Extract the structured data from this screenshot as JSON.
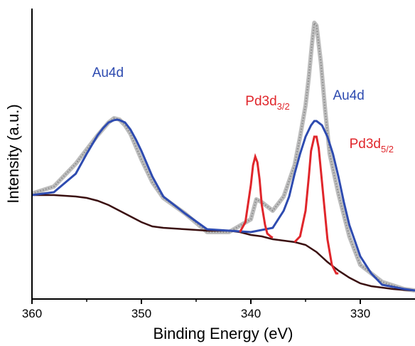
{
  "chart_data": {
    "type": "line",
    "xlabel": "Binding Energy (eV)",
    "ylabel": "Intensity (a.u.)",
    "xlim": [
      360,
      325
    ],
    "x_reversed": true,
    "y_ticks_shown": false,
    "grid": false,
    "xticks": [
      360,
      350,
      340,
      330
    ],
    "xtick_labels": [
      "360",
      "350",
      "340",
      "330"
    ],
    "colors": {
      "raw": "#bdbdbd",
      "raw_dots": "#8a8a8a",
      "au": "#2e4bb0",
      "pd": "#e0262b",
      "background": "#3a0f10"
    },
    "annotations": [
      {
        "name": "au4d-left",
        "text": "Au4d",
        "sub": "",
        "color": "#2e4bb0",
        "x": 354.5,
        "y": 0.78
      },
      {
        "name": "pd3d32",
        "text": "Pd3d",
        "sub": "3/2",
        "color": "#e0262b",
        "x": 340.5,
        "y": 0.68
      },
      {
        "name": "au4d-right",
        "text": "Au4d",
        "sub": "",
        "color": "#2e4bb0",
        "x": 332.5,
        "y": 0.7
      },
      {
        "name": "pd3d52",
        "text": "Pd3d",
        "sub": "5/2",
        "color": "#e0262b",
        "x": 331.0,
        "y": 0.53
      }
    ],
    "series": [
      {
        "name": "",
        "role": "raw",
        "x": [
          360,
          358,
          356,
          354,
          353,
          352.5,
          352,
          351.5,
          351,
          350,
          349,
          348,
          346,
          344,
          342,
          340,
          339.5,
          339,
          338,
          337,
          336,
          335.5,
          335,
          334.7,
          334.4,
          334.2,
          334,
          333.6,
          333.2,
          332.8,
          332,
          331,
          330,
          328,
          326,
          325
        ],
        "y": [
          0.37,
          0.395,
          0.475,
          0.575,
          0.62,
          0.635,
          0.63,
          0.61,
          0.58,
          0.49,
          0.41,
          0.355,
          0.3,
          0.235,
          0.235,
          0.28,
          0.35,
          0.34,
          0.31,
          0.36,
          0.47,
          0.57,
          0.68,
          0.78,
          0.9,
          0.97,
          0.96,
          0.83,
          0.66,
          0.51,
          0.37,
          0.22,
          0.12,
          0.06,
          0.035,
          0.03
        ]
      },
      {
        "name": "",
        "role": "background",
        "x": [
          360,
          358,
          356,
          355,
          354,
          353,
          352,
          351,
          350,
          349,
          348,
          346,
          344,
          342,
          341,
          340,
          339,
          338,
          337,
          336,
          335,
          334,
          333,
          332,
          331,
          330,
          329,
          328,
          327,
          326,
          325
        ],
        "y": [
          0.365,
          0.365,
          0.36,
          0.355,
          0.345,
          0.33,
          0.31,
          0.29,
          0.27,
          0.255,
          0.25,
          0.245,
          0.24,
          0.24,
          0.235,
          0.225,
          0.22,
          0.21,
          0.205,
          0.2,
          0.19,
          0.165,
          0.13,
          0.1,
          0.075,
          0.055,
          0.045,
          0.04,
          0.035,
          0.032,
          0.03
        ]
      },
      {
        "name": "",
        "role": "au",
        "x": [
          360,
          358,
          356,
          355,
          354,
          353.5,
          353,
          352.5,
          352.2,
          352,
          351.5,
          351,
          350.5,
          350,
          349,
          348,
          346,
          344,
          342,
          340,
          338,
          337,
          336.5,
          336,
          335.5,
          335,
          334.5,
          334.2,
          334,
          333.5,
          333,
          332.5,
          332,
          331.5,
          331,
          330,
          329,
          328,
          326,
          325
        ],
        "y": [
          0.365,
          0.375,
          0.44,
          0.51,
          0.575,
          0.6,
          0.62,
          0.628,
          0.63,
          0.628,
          0.62,
          0.595,
          0.56,
          0.52,
          0.43,
          0.36,
          0.3,
          0.245,
          0.24,
          0.235,
          0.25,
          0.31,
          0.36,
          0.44,
          0.51,
          0.57,
          0.61,
          0.625,
          0.625,
          0.61,
          0.57,
          0.51,
          0.43,
          0.34,
          0.26,
          0.15,
          0.09,
          0.05,
          0.035,
          0.03
        ]
      },
      {
        "name": "",
        "role": "pd",
        "x": [
          341,
          340.5,
          340,
          339.8,
          339.6,
          339.4,
          339.2,
          339,
          338.7,
          338.5,
          338.2,
          338
        ],
        "y": [
          0.235,
          0.27,
          0.4,
          0.47,
          0.5,
          0.48,
          0.42,
          0.33,
          0.26,
          0.23,
          0.22,
          0.215
        ]
      },
      {
        "name": "",
        "role": "pd",
        "x": [
          336,
          335.5,
          335,
          334.7,
          334.5,
          334.2,
          334,
          333.8,
          333.6,
          333.3,
          333,
          332.6,
          332.2,
          332
        ],
        "y": [
          0.2,
          0.22,
          0.31,
          0.43,
          0.52,
          0.57,
          0.57,
          0.53,
          0.45,
          0.33,
          0.21,
          0.12,
          0.09,
          0.09
        ]
      }
    ]
  }
}
